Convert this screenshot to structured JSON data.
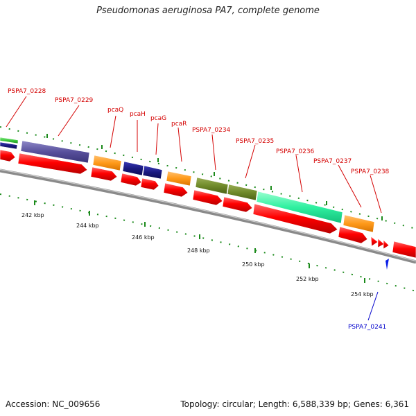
{
  "title": "Pseudomonas aeruginosa PA7, complete genome",
  "footer": {
    "accession": "Accession: NC_009656",
    "topology": "Topology: circular; Length: 6,588,339 bp; Genes: 6,361"
  },
  "axis_ticks": [
    "242 kbp",
    "244 kbp",
    "246 kbp",
    "248 kbp",
    "250 kbp",
    "252 kbp",
    "254 kbp"
  ],
  "gene_labels_top": [
    "PSPA7_0228",
    "PSPA7_0229",
    "pcaQ",
    "pcaH",
    "pcaG",
    "pcaR",
    "PSPA7_0234",
    "PSPA7_0235",
    "PSPA7_0236",
    "PSPA7_0237",
    "PSPA7_0238"
  ],
  "gene_labels_bottom": [
    "PSPA7_0241"
  ],
  "colors": {
    "red_label": "#d40000",
    "blue_label": "#0000cc",
    "tick_green": "#1a8a1a",
    "cds_red": "#ff0000",
    "backbone": "#8a8a8a"
  }
}
